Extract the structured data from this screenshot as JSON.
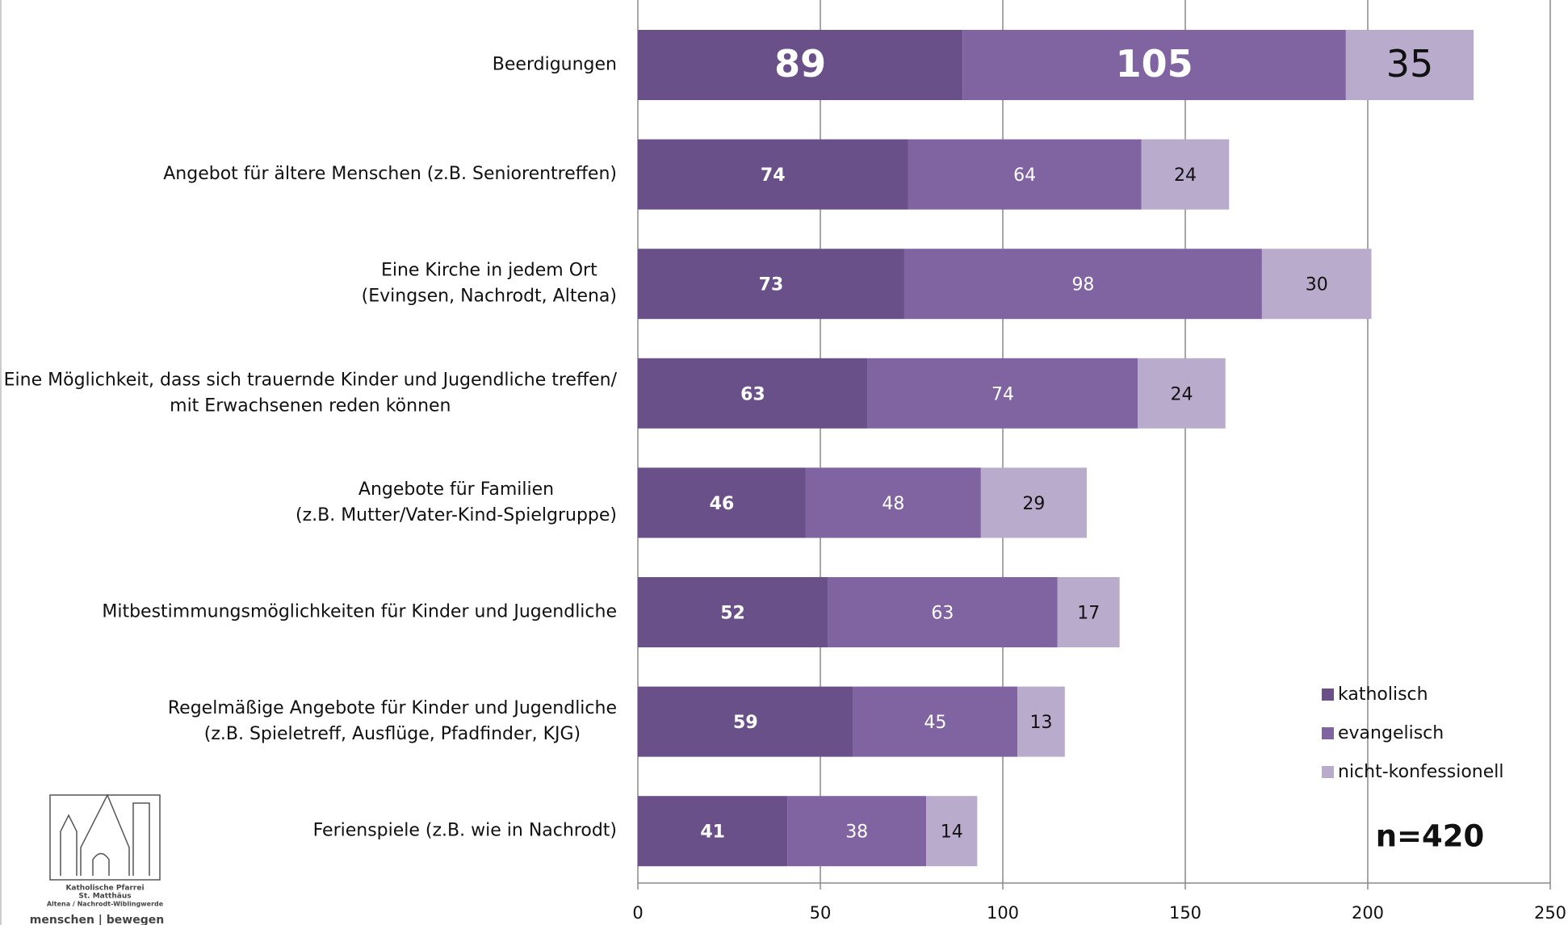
{
  "chart_data": {
    "type": "stacked_barh",
    "categories": [
      [
        "Beerdigungen"
      ],
      [
        "Angebot für ältere Menschen (z.B. Seniorentreffen)"
      ],
      [
        "Eine Kirche in jedem Ort",
        "(Evingsen, Nachrodt, Altena)"
      ],
      [
        "Eine Möglichkeit, dass sich trauernde Kinder und Jugendliche treffen/",
        "mit Erwachsenen reden können"
      ],
      [
        "Angebote für Familien",
        "(z.B. Mutter/Vater-Kind-Spielgruppe)"
      ],
      [
        "Mitbestimmungsmöglichkeiten für Kinder und Jugendliche"
      ],
      [
        "Regelmäßige Angebote für Kinder und Jugendliche",
        "(z.B. Spieletreff, Ausflüge, Pfadfinder, KJG)"
      ],
      [
        "Ferienspiele (z.B. wie in Nachrodt)"
      ]
    ],
    "series": [
      {
        "name": "katholisch",
        "color": "#6a5089",
        "values": [
          89,
          74,
          73,
          63,
          46,
          52,
          59,
          41
        ]
      },
      {
        "name": "evangelisch",
        "color": "#8064a2",
        "values": [
          105,
          64,
          98,
          74,
          48,
          63,
          45,
          38
        ]
      },
      {
        "name": "nicht-konfessionell",
        "color": "#b9abcb",
        "values": [
          35,
          24,
          30,
          24,
          29,
          17,
          13,
          14
        ]
      }
    ],
    "xlim": [
      0,
      250
    ],
    "xticks": [
      0,
      50,
      100,
      150,
      200,
      250
    ],
    "grid": true,
    "legend": "right",
    "annotations": [
      "n=420"
    ],
    "logo": [
      "Katholische Pfarrei",
      "St. Matthäus",
      "Altena / Nachrodt-Wiblingwerde",
      "menschen | bewegen"
    ]
  }
}
